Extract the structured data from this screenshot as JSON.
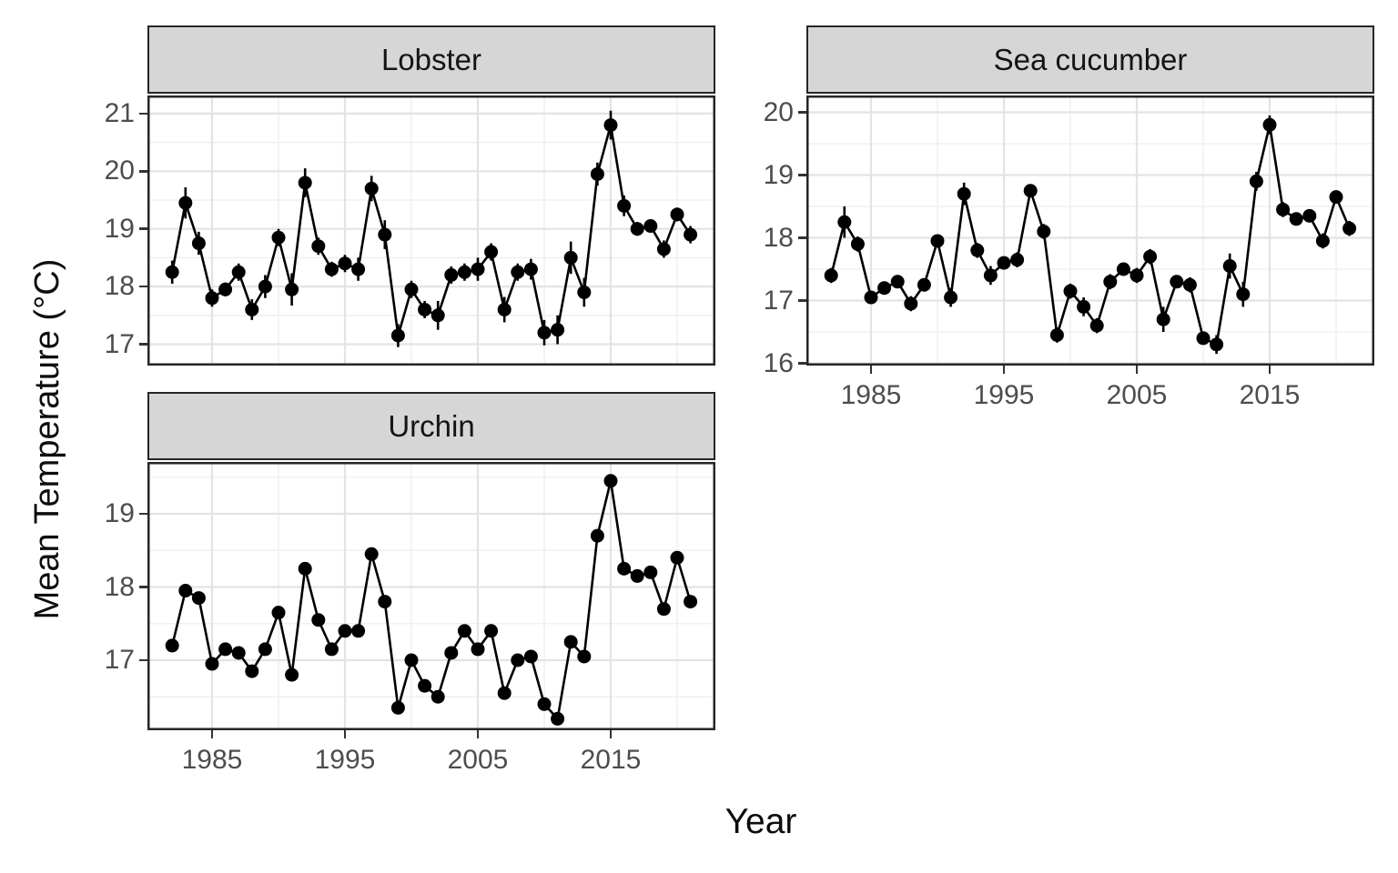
{
  "figure": {
    "y_axis_title": "Mean Temperature (°C)",
    "x_axis_title": "Year"
  },
  "colors": {
    "point": "#000000",
    "line": "#000000",
    "error_bar": "#000000",
    "strip_fill": "#d6d6d6",
    "panel_background": "#ffffff",
    "panel_border": "#262626",
    "grid_major": "#e3e3e3",
    "grid_minor": "#f0f0f0",
    "tick_mark": "#333333",
    "tick_label": "#4d4d4d",
    "title_text": "#0d0d0d"
  },
  "chart_data": [
    {
      "type": "line",
      "facet": "Lobster",
      "xlabel": "Year",
      "ylabel": "Mean Temperature (°C)",
      "legend": "none",
      "grid": true,
      "x": [
        1982,
        1983,
        1984,
        1985,
        1986,
        1987,
        1988,
        1989,
        1990,
        1991,
        1992,
        1993,
        1994,
        1995,
        1996,
        1997,
        1998,
        1999,
        2000,
        2001,
        2002,
        2003,
        2004,
        2005,
        2006,
        2007,
        2008,
        2009,
        2010,
        2011,
        2012,
        2013,
        2014,
        2015,
        2016,
        2017,
        2018,
        2019,
        2020,
        2021
      ],
      "y": [
        18.25,
        19.45,
        18.75,
        17.8,
        17.95,
        18.25,
        17.6,
        18.0,
        18.85,
        17.95,
        19.8,
        18.7,
        18.3,
        18.4,
        18.3,
        19.7,
        18.9,
        17.15,
        17.95,
        17.6,
        17.5,
        18.2,
        18.25,
        18.3,
        18.6,
        17.6,
        18.25,
        18.3,
        17.2,
        17.25,
        18.5,
        17.9,
        19.95,
        20.8,
        19.4,
        19.0,
        19.05,
        18.65,
        19.25,
        18.9
      ],
      "yerr": [
        0.2,
        0.27,
        0.2,
        0.15,
        0.12,
        0.15,
        0.18,
        0.2,
        0.15,
        0.28,
        0.25,
        0.15,
        0.13,
        0.15,
        0.2,
        0.22,
        0.25,
        0.2,
        0.15,
        0.15,
        0.25,
        0.15,
        0.15,
        0.2,
        0.15,
        0.22,
        0.15,
        0.18,
        0.22,
        0.25,
        0.28,
        0.25,
        0.2,
        0.25,
        0.18,
        0.12,
        0.1,
        0.15,
        0.12,
        0.15
      ],
      "x_ticks": [
        1985,
        1995,
        2005,
        2015
      ],
      "x_minor": [
        1990,
        2000,
        2010,
        2020
      ],
      "y_ticks": [
        21,
        20,
        19,
        18,
        17
      ],
      "y_minor": [
        20.5,
        19.5,
        18.5,
        17.5
      ],
      "ylim": [
        16.6,
        21.3
      ],
      "xlim": [
        1980,
        2023
      ],
      "show_x_axis": false
    },
    {
      "type": "line",
      "facet": "Sea cucumber",
      "xlabel": "Year",
      "ylabel": "Mean Temperature (°C)",
      "legend": "none",
      "grid": true,
      "x": [
        1982,
        1983,
        1984,
        1985,
        1986,
        1987,
        1988,
        1989,
        1990,
        1991,
        1992,
        1993,
        1994,
        1995,
        1996,
        1997,
        1998,
        1999,
        2000,
        2001,
        2002,
        2003,
        2004,
        2005,
        2006,
        2007,
        2008,
        2009,
        2010,
        2011,
        2012,
        2013,
        2014,
        2015,
        2016,
        2017,
        2018,
        2019,
        2020,
        2021
      ],
      "y": [
        17.4,
        18.25,
        17.9,
        17.05,
        17.2,
        17.3,
        16.95,
        17.25,
        17.95,
        17.05,
        18.7,
        17.8,
        17.4,
        17.6,
        17.65,
        18.75,
        18.1,
        16.45,
        17.15,
        16.9,
        16.6,
        17.3,
        17.5,
        17.4,
        17.7,
        16.7,
        17.3,
        17.25,
        16.4,
        16.3,
        17.55,
        17.1,
        18.9,
        19.8,
        18.45,
        18.3,
        18.35,
        17.95,
        18.65,
        18.15
      ],
      "yerr": [
        0.12,
        0.25,
        0.12,
        0.1,
        0.1,
        0.1,
        0.12,
        0.1,
        0.1,
        0.15,
        0.18,
        0.12,
        0.15,
        0.1,
        0.12,
        0.1,
        0.12,
        0.12,
        0.12,
        0.15,
        0.12,
        0.12,
        0.1,
        0.12,
        0.12,
        0.2,
        0.1,
        0.12,
        0.1,
        0.15,
        0.2,
        0.2,
        0.15,
        0.15,
        0.12,
        0.1,
        0.1,
        0.12,
        0.1,
        0.12
      ],
      "x_ticks": [
        1985,
        1995,
        2005,
        2015
      ],
      "x_minor": [
        1990,
        2000,
        2010,
        2020
      ],
      "y_ticks": [
        20,
        19,
        18,
        17,
        16
      ],
      "y_minor": [
        19.5,
        18.5,
        17.5,
        16.5
      ],
      "ylim": [
        15.7,
        20.3
      ],
      "xlim": [
        1980,
        2023
      ],
      "show_x_axis": true
    },
    {
      "type": "line",
      "facet": "Urchin",
      "xlabel": "Year",
      "ylabel": "Mean Temperature (°C)",
      "legend": "none",
      "grid": true,
      "x": [
        1982,
        1983,
        1984,
        1985,
        1986,
        1987,
        1988,
        1989,
        1990,
        1991,
        1992,
        1993,
        1994,
        1995,
        1996,
        1997,
        1998,
        1999,
        2000,
        2001,
        2002,
        2003,
        2004,
        2005,
        2006,
        2007,
        2008,
        2009,
        2010,
        2011,
        2012,
        2013,
        2014,
        2015,
        2016,
        2017,
        2018,
        2019,
        2020,
        2021
      ],
      "y": [
        17.2,
        17.95,
        17.85,
        16.95,
        17.15,
        17.1,
        16.85,
        17.15,
        17.65,
        16.8,
        18.25,
        17.55,
        17.15,
        17.4,
        17.4,
        18.45,
        17.8,
        16.35,
        17.0,
        16.65,
        16.5,
        17.1,
        17.4,
        17.15,
        17.4,
        16.55,
        17.0,
        17.05,
        16.4,
        16.2,
        17.25,
        17.05,
        18.7,
        19.45,
        18.25,
        18.15,
        18.2,
        17.7,
        18.4,
        17.8
      ],
      "yerr": [
        0.05,
        0.05,
        0.05,
        0.05,
        0.05,
        0.05,
        0.05,
        0.05,
        0.05,
        0.05,
        0.05,
        0.05,
        0.05,
        0.05,
        0.05,
        0.05,
        0.05,
        0.05,
        0.05,
        0.05,
        0.05,
        0.05,
        0.05,
        0.05,
        0.05,
        0.05,
        0.05,
        0.05,
        0.05,
        0.05,
        0.05,
        0.05,
        0.05,
        0.05,
        0.05,
        0.05,
        0.05,
        0.05,
        0.05,
        0.05
      ],
      "x_ticks": [
        1985,
        1995,
        2005,
        2015
      ],
      "x_minor": [
        1990,
        2000,
        2010,
        2020
      ],
      "y_ticks": [
        19,
        18,
        17
      ],
      "y_minor": [
        19.5,
        18.5,
        17.5,
        16.5
      ],
      "ylim": [
        16.0,
        19.7
      ],
      "xlim": [
        1980,
        2023
      ],
      "show_x_axis": true
    }
  ]
}
